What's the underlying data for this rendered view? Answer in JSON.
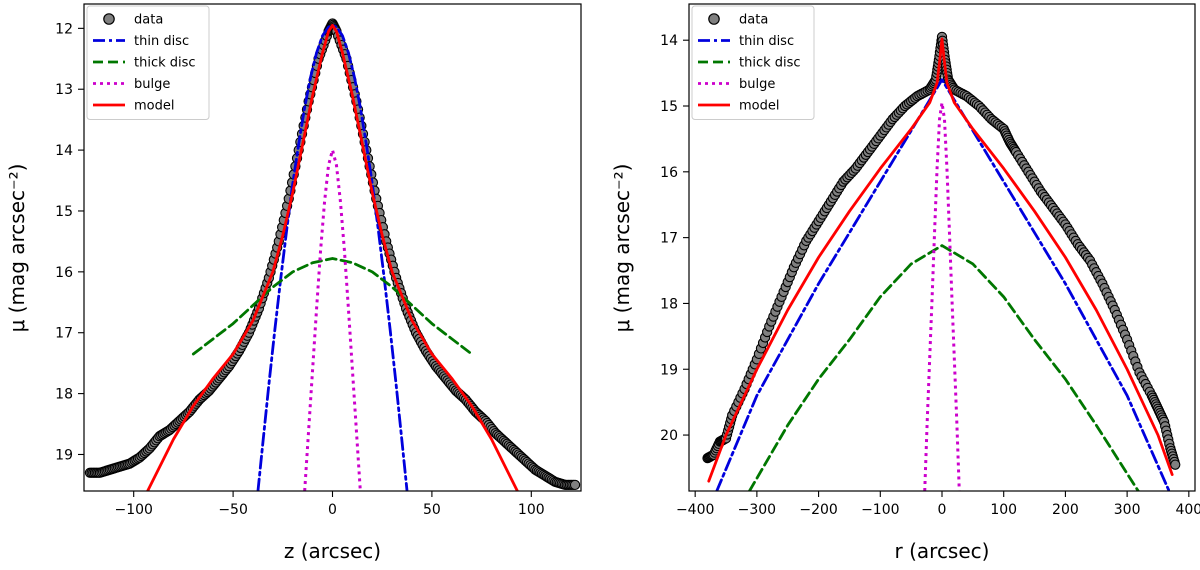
{
  "chart_data": [
    {
      "type": "line",
      "xlabel": "z (arcsec)",
      "ylabel": "μ (mag arcsec⁻²)",
      "xlim": [
        -125,
        125
      ],
      "ylim": [
        19.6,
        11.6
      ],
      "y_inverted": true,
      "xticks": [
        -100,
        -50,
        0,
        50,
        100
      ],
      "xtick_labels": [
        "−100",
        "−50",
        "0",
        "50",
        "100"
      ],
      "yticks": [
        12,
        13,
        14,
        15,
        16,
        17,
        18,
        19
      ],
      "ytick_labels": [
        "12",
        "13",
        "14",
        "15",
        "16",
        "17",
        "18",
        "19"
      ],
      "legend_position": "top-left",
      "series": [
        {
          "name": "data",
          "kind": "markers",
          "color": "#808080",
          "edgecolor": "#000000",
          "x": [
            -122,
            -117,
            -112,
            -107,
            -102,
            -97,
            -92,
            -87,
            -82,
            -77,
            -72,
            -67,
            -62,
            -57,
            -52,
            -47,
            -42,
            -37,
            -32,
            -27,
            -22,
            -17,
            -12,
            -7,
            -2,
            0,
            2,
            7,
            12,
            17,
            22,
            27,
            32,
            37,
            42,
            47,
            52,
            57,
            62,
            67,
            72,
            77,
            82,
            87,
            92,
            97,
            102,
            107,
            112,
            117,
            122
          ],
          "y": [
            19.3,
            19.3,
            19.25,
            19.2,
            19.15,
            19.05,
            18.9,
            18.7,
            18.6,
            18.45,
            18.3,
            18.1,
            17.95,
            17.75,
            17.55,
            17.3,
            17.0,
            16.6,
            16.1,
            15.5,
            14.8,
            14.0,
            13.2,
            12.5,
            12.05,
            11.92,
            12.05,
            12.5,
            13.2,
            14.0,
            14.8,
            15.5,
            16.1,
            16.6,
            17.0,
            17.3,
            17.55,
            17.75,
            17.95,
            18.1,
            18.3,
            18.45,
            18.65,
            18.8,
            18.95,
            19.1,
            19.25,
            19.35,
            19.45,
            19.5,
            19.5
          ]
        },
        {
          "name": "thin disc",
          "kind": "line",
          "style": "dashdot",
          "color": "#0000dd",
          "x": [
            -37.5,
            -35,
            -32,
            -29,
            -26,
            -23,
            -20,
            -17,
            -14,
            -11,
            -8,
            -5,
            -2,
            0,
            2,
            5,
            8,
            11,
            14,
            17,
            20,
            23,
            26,
            29,
            32,
            35,
            37.5
          ],
          "y": [
            19.6,
            18.8,
            17.85,
            16.95,
            16.1,
            15.3,
            14.55,
            13.9,
            13.3,
            12.8,
            12.4,
            12.12,
            11.98,
            11.95,
            11.98,
            12.12,
            12.4,
            12.8,
            13.3,
            13.9,
            14.55,
            15.3,
            16.1,
            16.95,
            17.85,
            18.8,
            19.6
          ]
        },
        {
          "name": "thick disc",
          "kind": "line",
          "style": "dashed",
          "color": "#007700",
          "x": [
            -70,
            -60,
            -50,
            -40,
            -30,
            -20,
            -10,
            0,
            10,
            20,
            30,
            40,
            50,
            60,
            70
          ],
          "y": [
            17.35,
            17.1,
            16.85,
            16.55,
            16.25,
            16.0,
            15.85,
            15.78,
            15.85,
            16.0,
            16.25,
            16.55,
            16.85,
            17.1,
            17.35
          ]
        },
        {
          "name": "bulge",
          "kind": "line",
          "style": "dotted",
          "color": "#cc00cc",
          "x": [
            -14,
            -12,
            -10,
            -8,
            -6,
            -4,
            -2,
            0,
            2,
            4,
            6,
            8,
            10,
            12,
            14
          ],
          "y": [
            19.6,
            18.6,
            17.6,
            16.6,
            15.65,
            14.85,
            14.25,
            14.0,
            14.25,
            14.85,
            15.65,
            16.6,
            17.6,
            18.6,
            19.6
          ]
        },
        {
          "name": "model",
          "kind": "line",
          "style": "solid",
          "color": "#ff0000",
          "x": [
            -93,
            -80,
            -70,
            -60,
            -50,
            -40,
            -30,
            -25,
            -20,
            -15,
            -10,
            -5,
            -2,
            0,
            2,
            5,
            10,
            15,
            20,
            25,
            30,
            40,
            50,
            60,
            70,
            80,
            93
          ],
          "y": [
            19.6,
            18.75,
            18.2,
            17.75,
            17.35,
            16.8,
            16.0,
            15.4,
            14.7,
            13.9,
            13.1,
            12.4,
            12.05,
            11.95,
            12.05,
            12.4,
            13.1,
            13.9,
            14.7,
            15.4,
            16.0,
            16.8,
            17.35,
            17.75,
            18.2,
            18.75,
            19.6
          ]
        }
      ]
    },
    {
      "type": "line",
      "xlabel": "r (arcsec)",
      "ylabel": "μ (mag arcsec⁻²)",
      "xlim": [
        -410,
        410
      ],
      "ylim": [
        20.85,
        13.45
      ],
      "y_inverted": true,
      "xticks": [
        -400,
        -300,
        -200,
        -100,
        0,
        100,
        200,
        300,
        400
      ],
      "xtick_labels": [
        "−400",
        "−300",
        "−200",
        "−100",
        "0",
        "100",
        "200",
        "300",
        "400"
      ],
      "yticks": [
        14,
        15,
        16,
        17,
        18,
        19,
        20
      ],
      "ytick_labels": [
        "14",
        "15",
        "16",
        "17",
        "18",
        "19",
        "20"
      ],
      "legend_position": "top-left",
      "series": [
        {
          "name": "data",
          "kind": "markers",
          "color": "#808080",
          "edgecolor": "#000000",
          "x": [
            -380,
            -370,
            -360,
            -350,
            -340,
            -320,
            -300,
            -280,
            -260,
            -240,
            -220,
            -200,
            -180,
            -160,
            -140,
            -120,
            -100,
            -80,
            -60,
            -40,
            -20,
            -10,
            -5,
            0,
            5,
            10,
            20,
            40,
            60,
            80,
            100,
            110,
            120,
            140,
            160,
            180,
            200,
            220,
            240,
            260,
            280,
            300,
            320,
            340,
            350,
            360,
            370,
            378
          ],
          "y": [
            20.35,
            20.3,
            20.1,
            20.05,
            19.7,
            19.3,
            18.85,
            18.35,
            17.9,
            17.45,
            17.05,
            16.75,
            16.45,
            16.15,
            15.95,
            15.7,
            15.45,
            15.2,
            15.0,
            14.85,
            14.75,
            14.6,
            14.3,
            13.95,
            14.3,
            14.6,
            14.75,
            14.85,
            15.0,
            15.2,
            15.35,
            15.55,
            15.7,
            16.0,
            16.3,
            16.55,
            16.8,
            17.1,
            17.35,
            17.7,
            18.1,
            18.55,
            19.05,
            19.4,
            19.6,
            19.8,
            20.2,
            20.45
          ]
        },
        {
          "name": "thin disc",
          "kind": "line",
          "style": "dashdot",
          "color": "#0000dd",
          "x": [
            -365,
            -300,
            -200,
            -100,
            0,
            100,
            200,
            300,
            368
          ],
          "y": [
            20.85,
            19.4,
            17.7,
            16.15,
            14.6,
            16.15,
            17.7,
            19.4,
            20.85
          ]
        },
        {
          "name": "thick disc",
          "kind": "line",
          "style": "dashed",
          "color": "#007700",
          "x": [
            -312,
            -250,
            -200,
            -150,
            -100,
            -50,
            0,
            50,
            100,
            150,
            200,
            250,
            318
          ],
          "y": [
            20.85,
            19.85,
            19.15,
            18.55,
            17.9,
            17.4,
            17.12,
            17.4,
            17.9,
            18.55,
            19.15,
            19.85,
            20.85
          ]
        },
        {
          "name": "bulge",
          "kind": "line",
          "style": "dotted",
          "color": "#cc00cc",
          "x": [
            -28,
            -24,
            -20,
            -16,
            -12,
            -8,
            -4,
            0,
            4,
            8,
            12,
            16,
            20,
            24,
            28
          ],
          "y": [
            20.85,
            19.8,
            18.85,
            17.9,
            16.9,
            15.95,
            15.2,
            14.95,
            15.2,
            15.95,
            16.9,
            17.9,
            18.85,
            19.8,
            20.85
          ]
        },
        {
          "name": "model",
          "kind": "line",
          "style": "solid",
          "color": "#ff0000",
          "x": [
            -378,
            -350,
            -300,
            -250,
            -200,
            -150,
            -100,
            -50,
            -20,
            -8,
            -3,
            0,
            3,
            8,
            20,
            50,
            100,
            150,
            200,
            250,
            300,
            350,
            373
          ],
          "y": [
            20.7,
            20.0,
            19.0,
            18.1,
            17.3,
            16.6,
            15.95,
            15.35,
            14.95,
            14.65,
            14.25,
            13.98,
            14.25,
            14.65,
            14.95,
            15.35,
            15.95,
            16.6,
            17.3,
            18.1,
            19.0,
            20.0,
            20.6
          ]
        }
      ]
    }
  ]
}
